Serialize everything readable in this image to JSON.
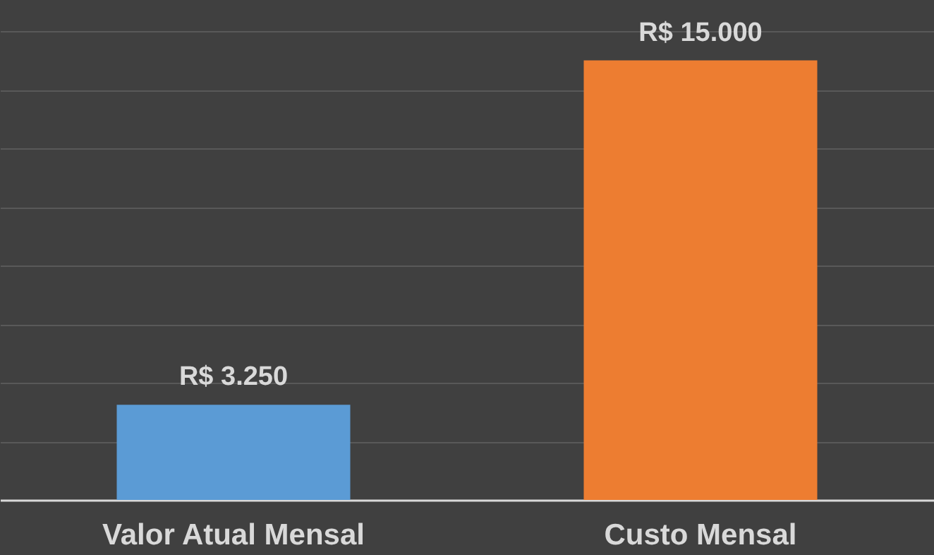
{
  "chart_data": {
    "type": "bar",
    "categories": [
      "Valor Atual Mensal",
      "Custo Mensal"
    ],
    "values": [
      3250,
      15000
    ],
    "colors": [
      "#5b9bd5",
      "#ed7d31"
    ],
    "value_labels": [
      "R$ 3.250",
      "R$ 15.000"
    ],
    "grid": "y",
    "tick_labels": "x"
  }
}
